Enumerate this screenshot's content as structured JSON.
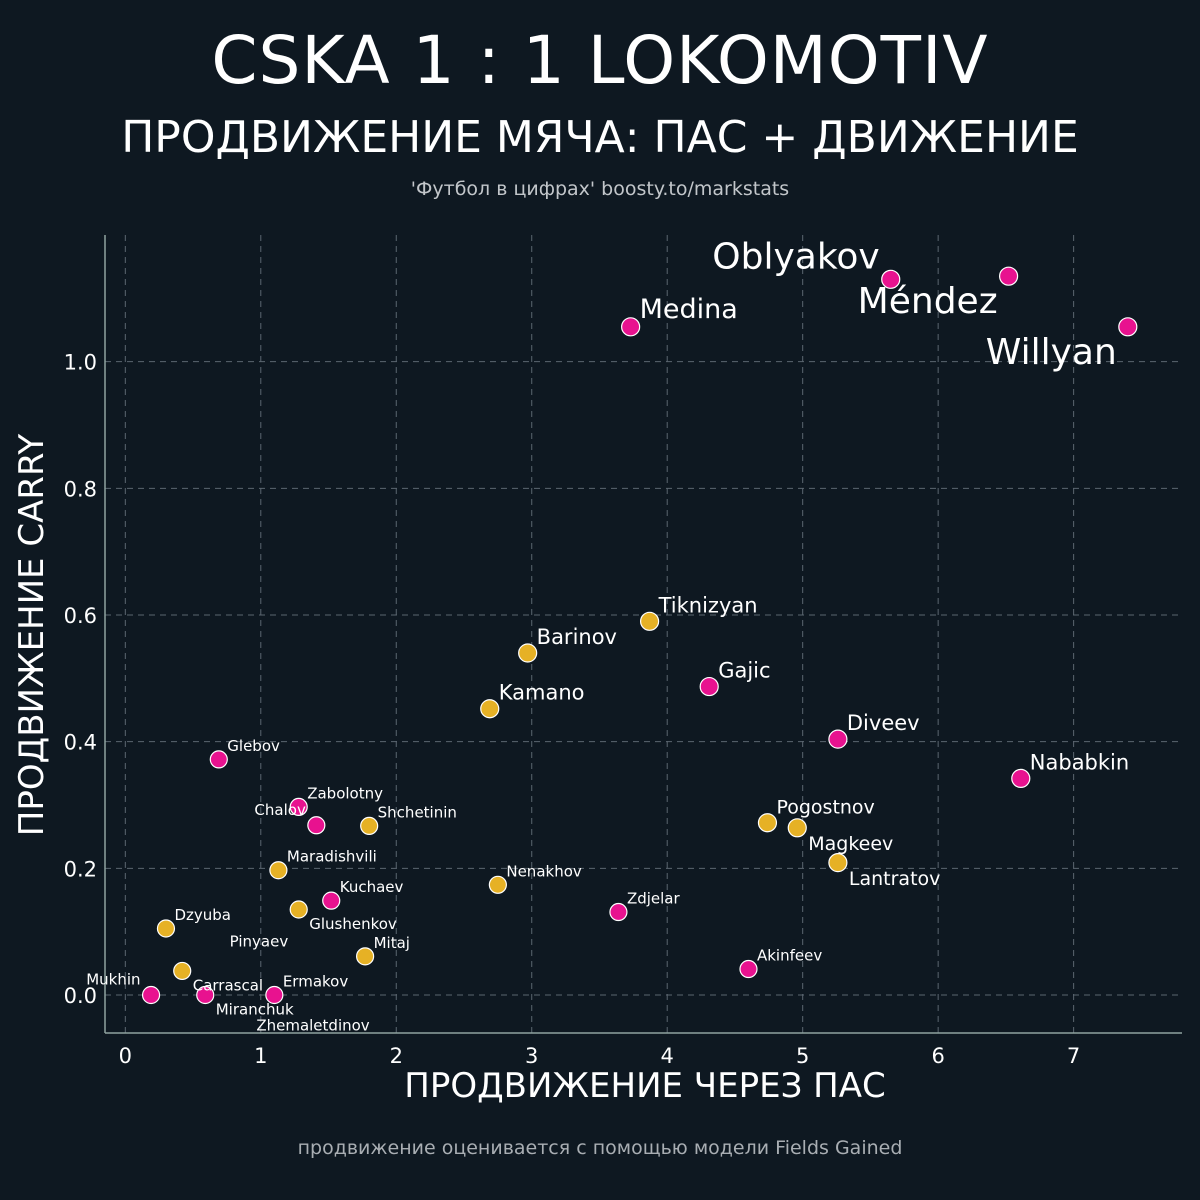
{
  "header": {
    "title": "CSKA 1 : 1 LOKOMOTIV",
    "subtitle": "ПРОДВИЖЕНИЕ МЯЧА: ПАС + ДВИЖЕНИЕ",
    "source": "'Футбол в цифрах' boosty.to/markstats"
  },
  "footer": {
    "note": "продвижение оценивается с помощью модели Fields Gained"
  },
  "colors": {
    "background": "#0e1821",
    "team_pink": "#e8128f",
    "team_yellow": "#e6b125",
    "grid": "#5b6670",
    "axis": "#8fa3a0"
  },
  "chart_data": {
    "type": "scatter",
    "title": "CSKA 1 : 1 LOKOMOTIV",
    "xlabel": "ПРОДВИЖЕНИЕ ЧЕРЕЗ ПАС",
    "ylabel": "ПРОДВИЖЕНИЕ CARRY",
    "xlim": [
      -0.15,
      7.8
    ],
    "ylim": [
      -0.06,
      1.2
    ],
    "xticks": [
      0,
      1,
      2,
      3,
      4,
      5,
      6,
      7
    ],
    "yticks": [
      0.0,
      0.2,
      0.4,
      0.6,
      0.8,
      1.0
    ],
    "ytick_labels": [
      "0.0",
      "0.2",
      "0.4",
      "0.6",
      "0.8",
      "1.0"
    ],
    "grid": true,
    "points": [
      {
        "name": "Oblyakov",
        "x": 5.65,
        "y": 1.13,
        "team": "pink",
        "size": "xl",
        "pos": "tl"
      },
      {
        "name": "Méndez",
        "x": 6.52,
        "y": 1.135,
        "team": "pink",
        "size": "xl",
        "pos": "bl"
      },
      {
        "name": "Willyan",
        "x": 7.4,
        "y": 1.055,
        "team": "pink",
        "size": "xl",
        "pos": "bl"
      },
      {
        "name": "Medina",
        "x": 3.73,
        "y": 1.055,
        "team": "pink",
        "size": "l",
        "pos": "tr"
      },
      {
        "name": "Tiknizyan",
        "x": 3.87,
        "y": 0.59,
        "team": "yellow",
        "size": "m",
        "pos": "tr"
      },
      {
        "name": "Barinov",
        "x": 2.97,
        "y": 0.54,
        "team": "yellow",
        "size": "m",
        "pos": "tr"
      },
      {
        "name": "Gajic",
        "x": 4.31,
        "y": 0.487,
        "team": "pink",
        "size": "m",
        "pos": "tr"
      },
      {
        "name": "Kamano",
        "x": 2.69,
        "y": 0.452,
        "team": "yellow",
        "size": "m",
        "pos": "tr"
      },
      {
        "name": "Diveev",
        "x": 5.26,
        "y": 0.404,
        "team": "pink",
        "size": "m",
        "pos": "tr"
      },
      {
        "name": "Nababkin",
        "x": 6.61,
        "y": 0.342,
        "team": "pink",
        "size": "m",
        "pos": "tr"
      },
      {
        "name": "Glebov",
        "x": 0.69,
        "y": 0.372,
        "team": "pink",
        "size": "s",
        "pos": "tr"
      },
      {
        "name": "Zabolotny",
        "x": 1.28,
        "y": 0.297,
        "team": "pink",
        "size": "s",
        "pos": "tr"
      },
      {
        "name": "Chalov",
        "x": 1.41,
        "y": 0.268,
        "team": "pink",
        "size": "s",
        "pos": "tl"
      },
      {
        "name": "Shchetinin",
        "x": 1.8,
        "y": 0.267,
        "team": "yellow",
        "size": "s",
        "pos": "tr"
      },
      {
        "name": "Pogostnov",
        "x": 4.74,
        "y": 0.272,
        "team": "yellow",
        "size": "sm",
        "pos": "tr"
      },
      {
        "name": "Magkeev",
        "x": 4.96,
        "y": 0.264,
        "team": "yellow",
        "size": "sm",
        "pos": "br"
      },
      {
        "name": "Lantratov",
        "x": 5.26,
        "y": 0.209,
        "team": "yellow",
        "size": "sm",
        "pos": "br"
      },
      {
        "name": "Maradishvili",
        "x": 1.13,
        "y": 0.197,
        "team": "yellow",
        "size": "s",
        "pos": "tr"
      },
      {
        "name": "Nenakhov",
        "x": 2.75,
        "y": 0.174,
        "team": "yellow",
        "size": "s",
        "pos": "tr"
      },
      {
        "name": "Kuchaev",
        "x": 1.52,
        "y": 0.149,
        "team": "pink",
        "size": "s",
        "pos": "tr"
      },
      {
        "name": "Glushenkov",
        "x": 1.28,
        "y": 0.135,
        "team": "yellow",
        "size": "s",
        "pos": "br"
      },
      {
        "name": "Zdjelar",
        "x": 3.64,
        "y": 0.131,
        "team": "pink",
        "size": "s",
        "pos": "tr"
      },
      {
        "name": "Dzyuba",
        "x": 0.3,
        "y": 0.105,
        "team": "yellow",
        "size": "s",
        "pos": "tr"
      },
      {
        "name": "Mitaj",
        "x": 1.77,
        "y": 0.061,
        "team": "yellow",
        "size": "s",
        "pos": "tr"
      },
      {
        "name": "Akinfeev",
        "x": 4.6,
        "y": 0.041,
        "team": "pink",
        "size": "s",
        "pos": "tr"
      },
      {
        "name": "Carrascal",
        "x": 0.42,
        "y": 0.038,
        "team": "yellow",
        "size": "s",
        "pos": "br"
      },
      {
        "name": "Pinyaev",
        "x": 1.28,
        "y": 0.06,
        "team": "yellow",
        "size": "s",
        "pos": "tl",
        "nodot": true
      },
      {
        "name": "Ermakov",
        "x": 1.1,
        "y": 0.0,
        "team": "pink",
        "size": "s",
        "pos": "tr"
      },
      {
        "name": "Mukhin",
        "x": 0.19,
        "y": 0.0,
        "team": "pink",
        "size": "s",
        "pos": "tl"
      },
      {
        "name": "Miranchuk",
        "x": 0.59,
        "y": 0.0,
        "team": "pink",
        "size": "s",
        "pos": "br"
      },
      {
        "name": "Zhemaletdinov",
        "x": 1.1,
        "y": 0.0,
        "team": "pink",
        "size": "s",
        "pos": "bbr",
        "nodot": true
      }
    ]
  }
}
